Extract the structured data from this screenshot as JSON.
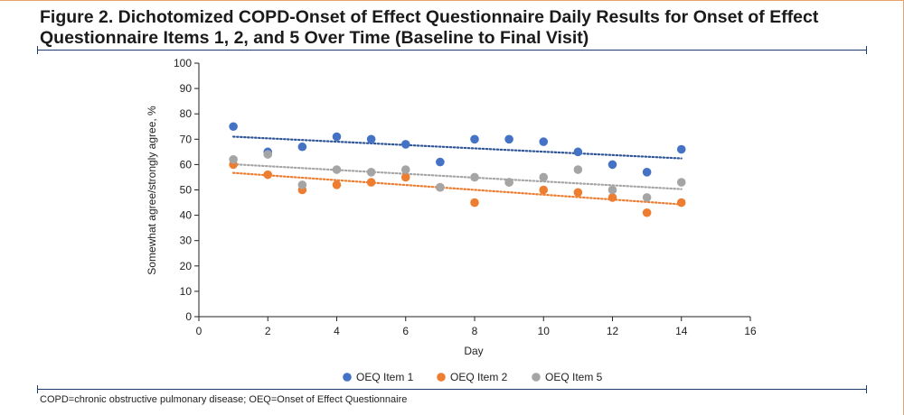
{
  "figure": {
    "title": "Figure 2. Dichotomized COPD-Onset of Effect Questionnaire Daily Results for Onset of Effect Questionnaire Items 1, 2, and 5 Over Time (Baseline to Final Visit)",
    "footnote": "COPD=chronic obstructive pulmonary disease; OEQ=Onset of Effect Questionnaire"
  },
  "colors": {
    "accent_rule": "#1f3b6e",
    "frame": "#e9a36a"
  },
  "chart_data": {
    "type": "scatter",
    "title": "",
    "xlabel": "Day",
    "ylabel": "Somewhat agree/strongly agree, %",
    "xlim": [
      0,
      16
    ],
    "ylim": [
      0,
      100
    ],
    "xticks": [
      0,
      2,
      4,
      6,
      8,
      10,
      12,
      14,
      16
    ],
    "yticks": [
      0,
      10,
      20,
      30,
      40,
      50,
      60,
      70,
      80,
      90,
      100
    ],
    "grid": false,
    "legend_position": "bottom",
    "trendlines": true,
    "trendline_style": "dotted linear",
    "series": [
      {
        "name": "OEQ Item 1",
        "color": "#4472c4",
        "trend_color": "#2f5597",
        "x": [
          1,
          2,
          3,
          4,
          5,
          6,
          7,
          8,
          9,
          10,
          11,
          12,
          13,
          14
        ],
        "y": [
          75,
          65,
          67,
          71,
          70,
          68,
          61,
          70,
          70,
          69,
          65,
          60,
          57,
          66
        ]
      },
      {
        "name": "OEQ Item 2",
        "color": "#ed7d31",
        "trend_color": "#ed7d31",
        "x": [
          1,
          2,
          3,
          4,
          5,
          6,
          7,
          8,
          9,
          10,
          11,
          12,
          13,
          14
        ],
        "y": [
          60,
          56,
          50,
          52,
          53,
          55,
          51,
          45,
          53,
          50,
          49,
          47,
          41,
          45
        ]
      },
      {
        "name": "OEQ Item 5",
        "color": "#a5a5a5",
        "trend_color": "#a5a5a5",
        "x": [
          1,
          2,
          3,
          4,
          5,
          6,
          7,
          8,
          9,
          10,
          11,
          12,
          13,
          14
        ],
        "y": [
          62,
          64,
          52,
          58,
          57,
          58,
          51,
          55,
          53,
          55,
          58,
          50,
          47,
          53
        ]
      }
    ]
  }
}
